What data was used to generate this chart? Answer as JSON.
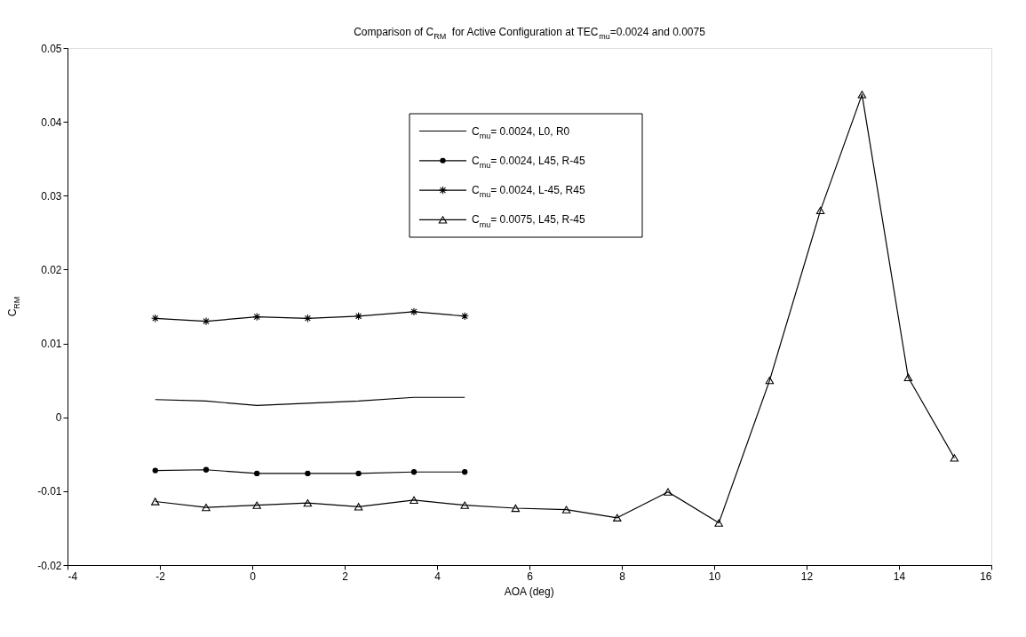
{
  "chart_data": {
    "type": "line",
    "title": "Comparison of C$_{RM}$  for Active Configuration at TEC$_{mu}$=0.0024 and 0.0075",
    "xlabel": "AOA (deg)",
    "ylabel": "C$_{RM}$",
    "xlim": [
      -4,
      16
    ],
    "xticks": [
      -4,
      -2,
      0,
      2,
      4,
      6,
      8,
      10,
      12,
      14,
      16
    ],
    "ylim": [
      -0.02,
      0.05
    ],
    "yticks": [
      -0.02,
      -0.01,
      0,
      0.01,
      0.02,
      0.03,
      0.04,
      0.05
    ],
    "grid": false,
    "legend": "top",
    "line_style": "solid",
    "series": [
      {
        "name": "C$_{mu}$= 0.0024, L0, R0",
        "color": "#000000",
        "marker": "none",
        "x": [
          -2.1,
          -1.0,
          0.1,
          1.2,
          2.3,
          3.5,
          4.6
        ],
        "values": [
          0.0024,
          0.0022,
          0.0016,
          0.0019,
          0.0022,
          0.0027,
          0.0027
        ]
      },
      {
        "name": "C$_{mu}$= 0.0024, L45, R-45",
        "color": "#000000",
        "marker": "circle",
        "x": [
          -2.1,
          -1.0,
          0.1,
          1.2,
          2.3,
          3.5,
          4.6
        ],
        "values": [
          -0.0072,
          -0.0071,
          -0.0076,
          -0.0076,
          -0.0076,
          -0.0074,
          -0.0074
        ]
      },
      {
        "name": "C$_{mu}$= 0.0024, L-45, R45",
        "color": "#000000",
        "marker": "cross",
        "x": [
          -2.1,
          -1.0,
          0.1,
          1.2,
          2.3,
          3.5,
          4.6
        ],
        "values": [
          0.0134,
          0.013,
          0.0136,
          0.0134,
          0.0137,
          0.0143,
          0.0137
        ]
      },
      {
        "name": "C$_{mu}$= 0.0075, L45, R-45",
        "color": "#000000",
        "marker": "triangle",
        "x": [
          -2.1,
          -1.0,
          0.1,
          1.2,
          2.3,
          3.5,
          4.6,
          5.7,
          6.8,
          7.9,
          9.0,
          10.1,
          11.2,
          12.3,
          13.2,
          14.2,
          15.2
        ],
        "values": [
          -0.0114,
          -0.0122,
          -0.0119,
          -0.0116,
          -0.0121,
          -0.0112,
          -0.0119,
          -0.0123,
          -0.0125,
          -0.0136,
          -0.0101,
          -0.0143,
          0.005,
          0.028,
          0.0437,
          0.0054,
          -0.0055
        ]
      }
    ]
  }
}
